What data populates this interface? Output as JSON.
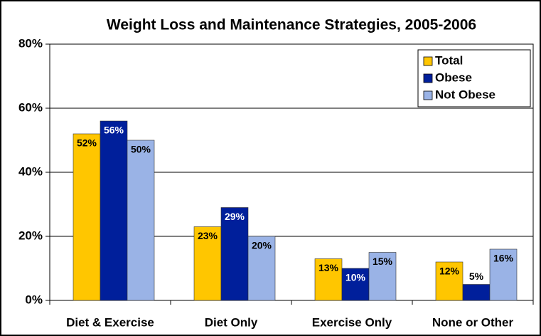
{
  "chart_data": {
    "type": "bar",
    "title": "Weight Loss and Maintenance Strategies, 2005-2006",
    "categories": [
      "Diet & Exercise",
      "Diet Only",
      "Exercise Only",
      "None or Other"
    ],
    "series": [
      {
        "name": "Total",
        "color": "#ffc600",
        "values": [
          52,
          23,
          13,
          12
        ],
        "value_labels": [
          "52%",
          "23%",
          "13%",
          "12%"
        ]
      },
      {
        "name": "Obese",
        "color": "#001f9b",
        "values": [
          56,
          29,
          10,
          5
        ],
        "value_labels": [
          "56%",
          "29%",
          "10%",
          "5%"
        ]
      },
      {
        "name": "Not Obese",
        "color": "#9ab3e6",
        "values": [
          50,
          20,
          15,
          16
        ],
        "value_labels": [
          "50%",
          "20%",
          "15%",
          "16%"
        ]
      }
    ],
    "ylim": [
      0,
      80
    ],
    "yticks": [
      {
        "value": 0,
        "label": "0%"
      },
      {
        "value": 20,
        "label": "20%"
      },
      {
        "value": 40,
        "label": "40%"
      },
      {
        "value": 60,
        "label": "60%"
      },
      {
        "value": 80,
        "label": "80%"
      }
    ],
    "grid": true,
    "legend": "top-right"
  }
}
